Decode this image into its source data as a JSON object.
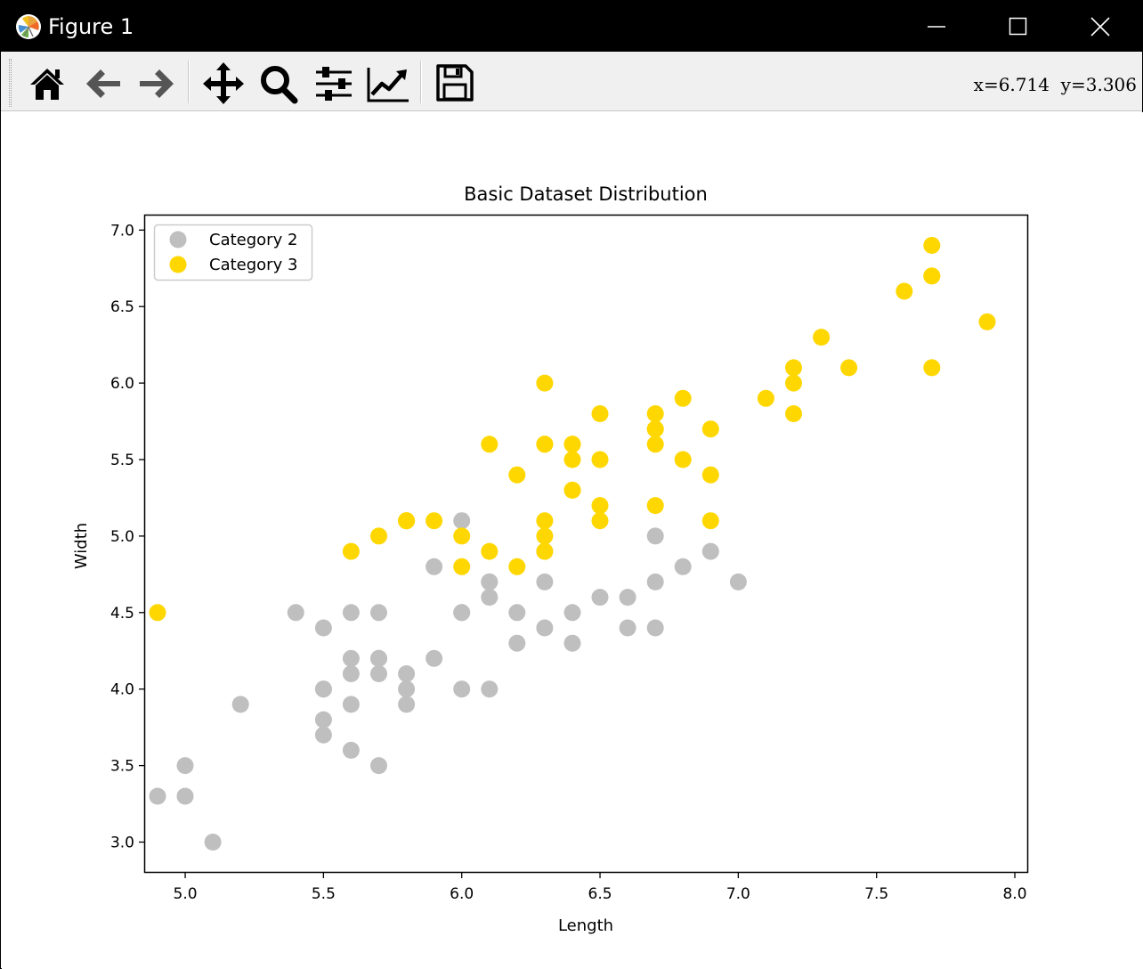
{
  "window": {
    "title": "Figure 1"
  },
  "toolbar": {
    "buttons": [
      {
        "name": "home-button",
        "icon": "home-icon"
      },
      {
        "name": "back-button",
        "icon": "arrow-left-icon"
      },
      {
        "name": "forward-button",
        "icon": "arrow-right-icon"
      },
      {
        "name": "pan-button",
        "icon": "move-icon"
      },
      {
        "name": "zoom-button",
        "icon": "magnifier-icon"
      },
      {
        "name": "configure-subplots-button",
        "icon": "sliders-icon"
      },
      {
        "name": "edit-axes-button",
        "icon": "line-chart-icon"
      },
      {
        "name": "save-button",
        "icon": "floppy-disk-icon"
      }
    ],
    "coords": "x=6.714  y=3.306"
  },
  "chart_data": {
    "type": "scatter",
    "title": "Basic Dataset Distribution",
    "xlabel": "Length",
    "ylabel": "Width",
    "xlim": [
      4.855,
      8.045
    ],
    "ylim": [
      2.805,
      7.095
    ],
    "xticks": [
      "5.0",
      "5.5",
      "6.0",
      "6.5",
      "7.0",
      "7.5",
      "8.0"
    ],
    "yticks": [
      "3.0",
      "3.5",
      "4.0",
      "4.5",
      "5.0",
      "5.5",
      "6.0",
      "6.5",
      "7.0"
    ],
    "legend": "upper left",
    "grid": false,
    "series": [
      {
        "name": "Category 2",
        "color": "#bfbfbf",
        "points": [
          [
            7.0,
            4.7
          ],
          [
            6.4,
            4.5
          ],
          [
            6.9,
            4.9
          ],
          [
            5.5,
            4.0
          ],
          [
            6.5,
            4.6
          ],
          [
            5.7,
            4.5
          ],
          [
            6.3,
            4.7
          ],
          [
            4.9,
            3.3
          ],
          [
            6.6,
            4.6
          ],
          [
            5.2,
            3.9
          ],
          [
            5.0,
            3.5
          ],
          [
            5.9,
            4.2
          ],
          [
            6.0,
            4.0
          ],
          [
            6.1,
            4.7
          ],
          [
            5.6,
            3.6
          ],
          [
            6.7,
            4.4
          ],
          [
            5.6,
            4.5
          ],
          [
            5.8,
            4.1
          ],
          [
            6.2,
            4.5
          ],
          [
            5.6,
            3.9
          ],
          [
            5.9,
            4.8
          ],
          [
            6.1,
            4.0
          ],
          [
            6.3,
            4.9
          ],
          [
            6.1,
            4.7
          ],
          [
            6.4,
            4.3
          ],
          [
            6.6,
            4.4
          ],
          [
            6.8,
            4.8
          ],
          [
            6.7,
            5.0
          ],
          [
            6.0,
            4.5
          ],
          [
            5.7,
            3.5
          ],
          [
            5.5,
            3.8
          ],
          [
            5.5,
            3.7
          ],
          [
            5.8,
            3.9
          ],
          [
            6.0,
            5.1
          ],
          [
            5.4,
            4.5
          ],
          [
            6.0,
            4.5
          ],
          [
            6.7,
            4.7
          ],
          [
            6.3,
            4.4
          ],
          [
            5.6,
            4.1
          ],
          [
            5.5,
            4.0
          ],
          [
            5.5,
            4.4
          ],
          [
            6.1,
            4.6
          ],
          [
            5.8,
            4.0
          ],
          [
            5.0,
            3.3
          ],
          [
            5.6,
            4.2
          ],
          [
            5.7,
            4.2
          ],
          [
            5.7,
            4.2
          ],
          [
            6.2,
            4.3
          ],
          [
            5.1,
            3.0
          ],
          [
            5.7,
            4.1
          ]
        ]
      },
      {
        "name": "Category 3",
        "color": "#ffd700",
        "points": [
          [
            6.3,
            6.0
          ],
          [
            5.8,
            5.1
          ],
          [
            7.1,
            5.9
          ],
          [
            6.3,
            5.6
          ],
          [
            6.5,
            5.8
          ],
          [
            7.6,
            6.6
          ],
          [
            4.9,
            4.5
          ],
          [
            7.3,
            6.3
          ],
          [
            6.7,
            5.8
          ],
          [
            7.2,
            6.1
          ],
          [
            6.5,
            5.1
          ],
          [
            6.4,
            5.3
          ],
          [
            6.8,
            5.5
          ],
          [
            5.7,
            5.0
          ],
          [
            5.8,
            5.1
          ],
          [
            6.4,
            5.3
          ],
          [
            6.5,
            5.5
          ],
          [
            7.7,
            6.7
          ],
          [
            7.7,
            6.9
          ],
          [
            6.0,
            5.0
          ],
          [
            6.9,
            5.7
          ],
          [
            5.6,
            4.9
          ],
          [
            7.7,
            6.7
          ],
          [
            6.3,
            4.9
          ],
          [
            6.7,
            5.7
          ],
          [
            7.2,
            6.0
          ],
          [
            6.2,
            4.8
          ],
          [
            6.1,
            4.9
          ],
          [
            6.4,
            5.6
          ],
          [
            7.2,
            5.8
          ],
          [
            7.4,
            6.1
          ],
          [
            7.9,
            6.4
          ],
          [
            6.4,
            5.6
          ],
          [
            6.3,
            5.1
          ],
          [
            6.1,
            5.6
          ],
          [
            7.7,
            6.1
          ],
          [
            6.3,
            5.6
          ],
          [
            6.4,
            5.5
          ],
          [
            6.0,
            4.8
          ],
          [
            6.9,
            5.4
          ],
          [
            6.7,
            5.6
          ],
          [
            6.9,
            5.1
          ],
          [
            5.8,
            5.1
          ],
          [
            6.8,
            5.9
          ],
          [
            6.7,
            5.7
          ],
          [
            6.7,
            5.2
          ],
          [
            6.3,
            5.0
          ],
          [
            6.5,
            5.2
          ],
          [
            6.2,
            5.4
          ],
          [
            5.9,
            5.1
          ]
        ]
      }
    ]
  }
}
